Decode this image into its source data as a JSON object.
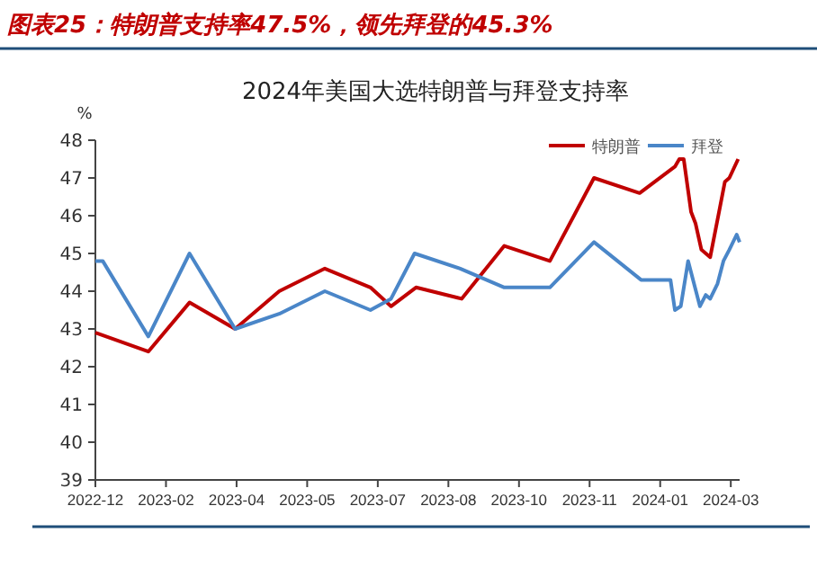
{
  "chart_data": {
    "type": "line",
    "title": "图表25：特朗普支持率47.5%，领先拜登的45.3%",
    "subtitle": "2024年美国大选特朗普与拜登支持率",
    "ylabel": "%",
    "xlim": [
      "2022-12-28",
      "2024-03-10"
    ],
    "xticks": [
      {
        "value": "2022-12-28",
        "label": "2022-12"
      },
      {
        "value": "2023-02-14",
        "label": "2023-02"
      },
      {
        "value": "2023-04-03",
        "label": "2023-04"
      },
      {
        "value": "2023-05-21",
        "label": "2023-05"
      },
      {
        "value": "2023-07-08",
        "label": "2023-07"
      },
      {
        "value": "2023-08-25",
        "label": "2023-08"
      },
      {
        "value": "2023-10-12",
        "label": "2023-10"
      },
      {
        "value": "2023-11-29",
        "label": "2023-11"
      },
      {
        "value": "2024-01-16",
        "label": "2024-01"
      },
      {
        "value": "2024-03-04",
        "label": "2024-03"
      }
    ],
    "ylim": [
      39,
      48
    ],
    "yticks": [
      39,
      40,
      41,
      42,
      43,
      44,
      45,
      46,
      47,
      48
    ],
    "grid": false,
    "legend": "top right",
    "marker": "none",
    "line_style": "solid",
    "series": [
      {
        "name": "特朗普",
        "color": "#c00000",
        "x": [
          "2022-12-28",
          "2023-02-02",
          "2023-03-02",
          "2023-04-02",
          "2023-05-02",
          "2023-06-02",
          "2023-07-03",
          "2023-07-17",
          "2023-08-03",
          "2023-09-03",
          "2023-10-02",
          "2023-11-02",
          "2023-12-02",
          "2024-01-02",
          "2024-01-26",
          "2024-01-29",
          "2024-02-01",
          "2024-02-06",
          "2024-02-09",
          "2024-02-13",
          "2024-02-19",
          "2024-02-25",
          "2024-02-29",
          "2024-03-03",
          "2024-03-09"
        ],
        "values": [
          42.9,
          42.4,
          43.7,
          43.0,
          44.0,
          44.6,
          44.1,
          43.6,
          44.1,
          43.8,
          45.2,
          44.8,
          47.0,
          46.6,
          47.3,
          47.5,
          47.5,
          46.1,
          45.8,
          45.1,
          44.9,
          46.1,
          46.9,
          47.0,
          47.5
        ]
      },
      {
        "name": "拜登",
        "color": "#4a86c8",
        "x": [
          "2022-12-28",
          "2023-01-02",
          "2023-02-02",
          "2023-03-02",
          "2023-04-02",
          "2023-05-02",
          "2023-06-02",
          "2023-07-03",
          "2023-07-17",
          "2023-08-02",
          "2023-09-02",
          "2023-10-02",
          "2023-11-02",
          "2023-12-02",
          "2024-01-03",
          "2024-01-23",
          "2024-01-26",
          "2024-01-30",
          "2024-02-04",
          "2024-02-12",
          "2024-02-16",
          "2024-02-19",
          "2024-02-24",
          "2024-02-28",
          "2024-03-03",
          "2024-03-08",
          "2024-03-10"
        ],
        "values": [
          44.8,
          44.8,
          42.8,
          45.0,
          43.0,
          43.4,
          44.0,
          43.5,
          43.8,
          45.0,
          44.6,
          44.1,
          44.1,
          45.3,
          44.3,
          44.3,
          43.5,
          43.6,
          44.8,
          43.6,
          43.9,
          43.8,
          44.2,
          44.8,
          45.1,
          45.5,
          45.3
        ]
      }
    ]
  }
}
